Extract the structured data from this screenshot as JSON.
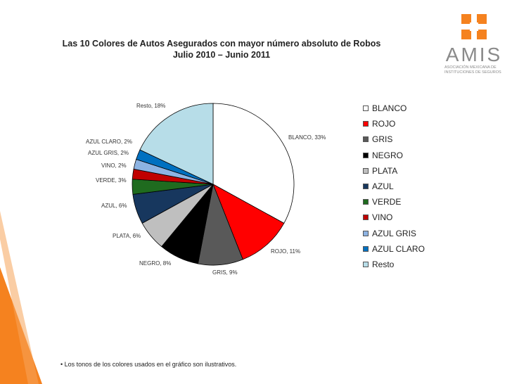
{
  "slide": {
    "title_line1": "Las 10 Colores de Autos Asegurados con mayor número absoluto de Robos",
    "title_line2": "Julio  2010 – Junio  2011",
    "footnote": "• Los tonos de los colores usados en el gráfico son ilustrativos.",
    "logo_text": "AMIS",
    "logo_subtitle": "ASOCIACIÓN MEXICANA DE INSTITUCIONES DE SEGUROS",
    "accent_color": "#f5821f"
  },
  "chart_data": {
    "type": "pie",
    "title": "Las 10 Colores de Autos Asegurados con mayor número absoluto de Robos",
    "subtitle": "Julio  2010 – Junio  2011",
    "legend_position": "right",
    "categories": [
      "BLANCO",
      "ROJO",
      "GRIS",
      "NEGRO",
      "PLATA",
      "AZUL",
      "VERDE",
      "VINO",
      "AZUL GRIS",
      "AZUL CLARO",
      "Resto"
    ],
    "values": [
      33,
      11,
      9,
      8,
      6,
      6,
      3,
      2,
      2,
      2,
      18
    ],
    "data_labels": [
      "BLANCO, 33%",
      "ROJO, 11%",
      "GRIS, 9%",
      "NEGRO, 8%",
      "PLATA, 6%",
      "AZUL, 6%",
      "VERDE, 3%",
      "VINO, 2%",
      "AZUL GRIS, 2%",
      "AZUL CLARO, 2%",
      "Resto, 18%"
    ],
    "colors": [
      "#ffffff",
      "#ff0000",
      "#595959",
      "#000000",
      "#bfbfbf",
      "#17375e",
      "#1f6b1f",
      "#c00000",
      "#8db3e2",
      "#0070c0",
      "#b7dde8"
    ]
  }
}
